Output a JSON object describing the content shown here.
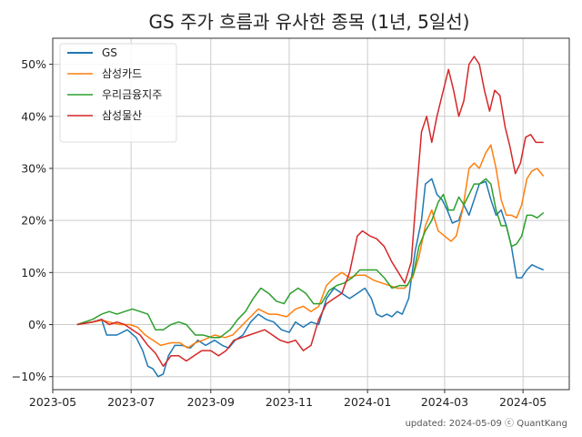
{
  "chart_data": {
    "type": "line",
    "title": "GS 주가 흐름과 유사한 종목 (1년, 5일선)",
    "xlabel": "",
    "ylabel": "",
    "x_range": [
      "2023-05-01",
      "2024-06-06"
    ],
    "ylim": [
      -12.5,
      55
    ],
    "x_ticks": [
      "2023-05",
      "2023-07",
      "2023-09",
      "2023-11",
      "2024-01",
      "2024-03",
      "2024-05"
    ],
    "y_ticks": [
      -10,
      0,
      10,
      20,
      30,
      40,
      50
    ],
    "y_tick_labels": [
      "−10%",
      "0%",
      "10%",
      "20%",
      "30%",
      "40%",
      "50%"
    ],
    "grid": true,
    "legend_position": "top-left",
    "footer": "updated: 2024-05-09 ⓒ QuantKang",
    "series": [
      {
        "name": "GS",
        "color": "#1f77b4",
        "points": [
          [
            "2023-05-20",
            0.0
          ],
          [
            "2023-06-01",
            0.5
          ],
          [
            "2023-06-08",
            1.0
          ],
          [
            "2023-06-12",
            -2.0
          ],
          [
            "2023-06-20",
            -2.0
          ],
          [
            "2023-06-28",
            -1.0
          ],
          [
            "2023-07-05",
            -2.5
          ],
          [
            "2023-07-10",
            -5.0
          ],
          [
            "2023-07-14",
            -8.0
          ],
          [
            "2023-07-18",
            -8.5
          ],
          [
            "2023-07-22",
            -10.0
          ],
          [
            "2023-07-26",
            -9.5
          ],
          [
            "2023-07-30",
            -6.0
          ],
          [
            "2023-08-04",
            -4.0
          ],
          [
            "2023-08-10",
            -4.0
          ],
          [
            "2023-08-16",
            -4.5
          ],
          [
            "2023-08-22",
            -3.0
          ],
          [
            "2023-08-28",
            -4.0
          ],
          [
            "2023-09-04",
            -3.0
          ],
          [
            "2023-09-10",
            -4.0
          ],
          [
            "2023-09-15",
            -4.5
          ],
          [
            "2023-09-20",
            -3.0
          ],
          [
            "2023-09-26",
            -2.0
          ],
          [
            "2023-10-02",
            0.5
          ],
          [
            "2023-10-08",
            2.0
          ],
          [
            "2023-10-14",
            1.0
          ],
          [
            "2023-10-20",
            0.5
          ],
          [
            "2023-10-26",
            -1.0
          ],
          [
            "2023-11-01",
            -1.5
          ],
          [
            "2023-11-06",
            0.5
          ],
          [
            "2023-11-12",
            -0.5
          ],
          [
            "2023-11-18",
            0.5
          ],
          [
            "2023-11-24",
            0.0
          ],
          [
            "2023-11-30",
            5.0
          ],
          [
            "2023-12-06",
            7.0
          ],
          [
            "2023-12-12",
            6.0
          ],
          [
            "2023-12-18",
            5.0
          ],
          [
            "2023-12-24",
            6.0
          ],
          [
            "2023-12-30",
            7.0
          ],
          [
            "2024-01-04",
            5.0
          ],
          [
            "2024-01-08",
            2.0
          ],
          [
            "2024-01-12",
            1.5
          ],
          [
            "2024-01-16",
            2.0
          ],
          [
            "2024-01-20",
            1.5
          ],
          [
            "2024-01-24",
            2.5
          ],
          [
            "2024-01-28",
            2.0
          ],
          [
            "2024-02-02",
            5.0
          ],
          [
            "2024-02-07",
            14.0
          ],
          [
            "2024-02-12",
            20.0
          ],
          [
            "2024-02-15",
            27.0
          ],
          [
            "2024-02-20",
            28.0
          ],
          [
            "2024-02-24",
            25.0
          ],
          [
            "2024-02-28",
            24.0
          ],
          [
            "2024-03-03",
            22.0
          ],
          [
            "2024-03-07",
            19.5
          ],
          [
            "2024-03-12",
            20.0
          ],
          [
            "2024-03-16",
            23.0
          ],
          [
            "2024-03-20",
            21.0
          ],
          [
            "2024-03-24",
            24.0
          ],
          [
            "2024-03-28",
            27.0
          ],
          [
            "2024-04-02",
            27.5
          ],
          [
            "2024-04-06",
            24.0
          ],
          [
            "2024-04-10",
            21.0
          ],
          [
            "2024-04-14",
            22.0
          ],
          [
            "2024-04-18",
            19.0
          ],
          [
            "2024-04-22",
            15.0
          ],
          [
            "2024-04-26",
            9.0
          ],
          [
            "2024-04-30",
            9.0
          ],
          [
            "2024-05-04",
            10.5
          ],
          [
            "2024-05-08",
            11.5
          ],
          [
            "2024-05-12",
            11.0
          ],
          [
            "2024-05-17",
            10.5
          ]
        ]
      },
      {
        "name": "삼성카드",
        "color": "#ff7f0e",
        "points": [
          [
            "2023-05-20",
            0.0
          ],
          [
            "2023-06-01",
            0.5
          ],
          [
            "2023-06-08",
            0.8
          ],
          [
            "2023-06-14",
            0.5
          ],
          [
            "2023-06-22",
            0.0
          ],
          [
            "2023-06-30",
            0.0
          ],
          [
            "2023-07-06",
            -0.5
          ],
          [
            "2023-07-12",
            -2.0
          ],
          [
            "2023-07-18",
            -3.0
          ],
          [
            "2023-07-24",
            -4.0
          ],
          [
            "2023-08-01",
            -3.5
          ],
          [
            "2023-08-08",
            -3.5
          ],
          [
            "2023-08-14",
            -4.5
          ],
          [
            "2023-08-20",
            -3.5
          ],
          [
            "2023-08-26",
            -3.0
          ],
          [
            "2023-09-04",
            -2.0
          ],
          [
            "2023-09-12",
            -2.5
          ],
          [
            "2023-09-18",
            -2.0
          ],
          [
            "2023-09-26",
            0.0
          ],
          [
            "2023-10-02",
            1.5
          ],
          [
            "2023-10-08",
            3.0
          ],
          [
            "2023-10-16",
            2.0
          ],
          [
            "2023-10-22",
            2.0
          ],
          [
            "2023-10-30",
            1.5
          ],
          [
            "2023-11-06",
            3.0
          ],
          [
            "2023-11-12",
            3.5
          ],
          [
            "2023-11-18",
            2.5
          ],
          [
            "2023-11-24",
            3.5
          ],
          [
            "2023-11-30",
            7.5
          ],
          [
            "2023-12-06",
            9.0
          ],
          [
            "2023-12-12",
            10.0
          ],
          [
            "2023-12-18",
            9.0
          ],
          [
            "2023-12-24",
            9.5
          ],
          [
            "2023-12-30",
            9.5
          ],
          [
            "2024-01-06",
            8.5
          ],
          [
            "2024-01-12",
            8.0
          ],
          [
            "2024-01-18",
            7.5
          ],
          [
            "2024-01-24",
            7.0
          ],
          [
            "2024-01-30",
            7.0
          ],
          [
            "2024-02-05",
            9.0
          ],
          [
            "2024-02-10",
            13.0
          ],
          [
            "2024-02-15",
            19.0
          ],
          [
            "2024-02-20",
            22.0
          ],
          [
            "2024-02-25",
            18.0
          ],
          [
            "2024-03-01",
            17.0
          ],
          [
            "2024-03-06",
            16.0
          ],
          [
            "2024-03-10",
            17.0
          ],
          [
            "2024-03-15",
            22.0
          ],
          [
            "2024-03-20",
            30.0
          ],
          [
            "2024-03-24",
            31.0
          ],
          [
            "2024-03-28",
            30.0
          ],
          [
            "2024-04-02",
            33.0
          ],
          [
            "2024-04-06",
            34.5
          ],
          [
            "2024-04-10",
            30.0
          ],
          [
            "2024-04-14",
            24.0
          ],
          [
            "2024-04-18",
            21.0
          ],
          [
            "2024-04-22",
            21.0
          ],
          [
            "2024-04-26",
            20.5
          ],
          [
            "2024-04-30",
            23.0
          ],
          [
            "2024-05-04",
            28.0
          ],
          [
            "2024-05-08",
            29.5
          ],
          [
            "2024-05-12",
            30.0
          ],
          [
            "2024-05-17",
            28.5
          ]
        ]
      },
      {
        "name": "우리금융지주",
        "color": "#2ca02c",
        "points": [
          [
            "2023-05-20",
            0.0
          ],
          [
            "2023-06-01",
            1.0
          ],
          [
            "2023-06-08",
            2.0
          ],
          [
            "2023-06-14",
            2.5
          ],
          [
            "2023-06-20",
            2.0
          ],
          [
            "2023-06-26",
            2.5
          ],
          [
            "2023-07-02",
            3.0
          ],
          [
            "2023-07-08",
            2.5
          ],
          [
            "2023-07-14",
            2.0
          ],
          [
            "2023-07-20",
            -1.0
          ],
          [
            "2023-07-26",
            -1.0
          ],
          [
            "2023-08-01",
            0.0
          ],
          [
            "2023-08-07",
            0.5
          ],
          [
            "2023-08-13",
            0.0
          ],
          [
            "2023-08-20",
            -2.0
          ],
          [
            "2023-08-26",
            -2.0
          ],
          [
            "2023-09-02",
            -2.5
          ],
          [
            "2023-09-08",
            -2.5
          ],
          [
            "2023-09-16",
            -1.0
          ],
          [
            "2023-09-22",
            1.0
          ],
          [
            "2023-09-28",
            2.5
          ],
          [
            "2023-10-04",
            5.0
          ],
          [
            "2023-10-10",
            7.0
          ],
          [
            "2023-10-16",
            6.0
          ],
          [
            "2023-10-22",
            4.5
          ],
          [
            "2023-10-28",
            4.0
          ],
          [
            "2023-11-02",
            6.0
          ],
          [
            "2023-11-08",
            7.0
          ],
          [
            "2023-11-14",
            6.0
          ],
          [
            "2023-11-20",
            4.0
          ],
          [
            "2023-11-26",
            4.0
          ],
          [
            "2023-12-02",
            6.5
          ],
          [
            "2023-12-08",
            7.5
          ],
          [
            "2023-12-14",
            8.0
          ],
          [
            "2023-12-20",
            9.0
          ],
          [
            "2023-12-26",
            10.5
          ],
          [
            "2024-01-02",
            10.5
          ],
          [
            "2024-01-08",
            10.5
          ],
          [
            "2024-01-14",
            9.0
          ],
          [
            "2024-01-20",
            7.0
          ],
          [
            "2024-01-26",
            7.5
          ],
          [
            "2024-02-01",
            7.5
          ],
          [
            "2024-02-06",
            10.0
          ],
          [
            "2024-02-10",
            15.0
          ],
          [
            "2024-02-15",
            18.0
          ],
          [
            "2024-02-20",
            20.0
          ],
          [
            "2024-02-25",
            23.5
          ],
          [
            "2024-02-29",
            25.0
          ],
          [
            "2024-03-04",
            22.0
          ],
          [
            "2024-03-08",
            22.0
          ],
          [
            "2024-03-12",
            24.5
          ],
          [
            "2024-03-16",
            23.0
          ],
          [
            "2024-03-20",
            25.0
          ],
          [
            "2024-03-24",
            27.0
          ],
          [
            "2024-03-28",
            27.0
          ],
          [
            "2024-04-02",
            28.0
          ],
          [
            "2024-04-06",
            27.0
          ],
          [
            "2024-04-10",
            22.0
          ],
          [
            "2024-04-14",
            19.0
          ],
          [
            "2024-04-18",
            19.0
          ],
          [
            "2024-04-22",
            15.0
          ],
          [
            "2024-04-26",
            15.5
          ],
          [
            "2024-04-30",
            17.0
          ],
          [
            "2024-05-04",
            21.0
          ],
          [
            "2024-05-08",
            21.0
          ],
          [
            "2024-05-12",
            20.5
          ],
          [
            "2024-05-17",
            21.5
          ]
        ]
      },
      {
        "name": "삼성물산",
        "color": "#d62728",
        "points": [
          [
            "2023-05-20",
            0.0
          ],
          [
            "2023-06-01",
            0.5
          ],
          [
            "2023-06-08",
            1.0
          ],
          [
            "2023-06-14",
            0.0
          ],
          [
            "2023-06-20",
            0.5
          ],
          [
            "2023-06-26",
            0.0
          ],
          [
            "2023-07-02",
            -1.0
          ],
          [
            "2023-07-08",
            -2.0
          ],
          [
            "2023-07-14",
            -4.0
          ],
          [
            "2023-07-20",
            -5.5
          ],
          [
            "2023-07-26",
            -8.0
          ],
          [
            "2023-08-01",
            -6.0
          ],
          [
            "2023-08-07",
            -6.0
          ],
          [
            "2023-08-13",
            -7.0
          ],
          [
            "2023-08-19",
            -6.0
          ],
          [
            "2023-08-25",
            -5.0
          ],
          [
            "2023-09-01",
            -5.0
          ],
          [
            "2023-09-07",
            -6.0
          ],
          [
            "2023-09-13",
            -5.0
          ],
          [
            "2023-09-19",
            -3.0
          ],
          [
            "2023-09-25",
            -2.5
          ],
          [
            "2023-10-01",
            -2.0
          ],
          [
            "2023-10-07",
            -1.5
          ],
          [
            "2023-10-13",
            -1.0
          ],
          [
            "2023-10-19",
            -2.0
          ],
          [
            "2023-10-25",
            -3.0
          ],
          [
            "2023-10-31",
            -3.5
          ],
          [
            "2023-11-06",
            -3.0
          ],
          [
            "2023-11-12",
            -5.0
          ],
          [
            "2023-11-18",
            -4.0
          ],
          [
            "2023-11-24",
            1.0
          ],
          [
            "2023-11-30",
            4.0
          ],
          [
            "2023-12-06",
            5.0
          ],
          [
            "2023-12-12",
            6.0
          ],
          [
            "2023-12-18",
            10.0
          ],
          [
            "2023-12-24",
            17.0
          ],
          [
            "2023-12-28",
            18.0
          ],
          [
            "2024-01-03",
            17.0
          ],
          [
            "2024-01-08",
            16.5
          ],
          [
            "2024-01-14",
            15.0
          ],
          [
            "2024-01-20",
            12.0
          ],
          [
            "2024-01-25",
            10.0
          ],
          [
            "2024-01-30",
            8.0
          ],
          [
            "2024-02-04",
            12.0
          ],
          [
            "2024-02-08",
            25.0
          ],
          [
            "2024-02-12",
            37.0
          ],
          [
            "2024-02-16",
            40.0
          ],
          [
            "2024-02-20",
            35.0
          ],
          [
            "2024-02-24",
            40.0
          ],
          [
            "2024-02-28",
            44.0
          ],
          [
            "2024-03-04",
            49.0
          ],
          [
            "2024-03-08",
            45.0
          ],
          [
            "2024-03-12",
            40.0
          ],
          [
            "2024-03-16",
            43.0
          ],
          [
            "2024-03-20",
            50.0
          ],
          [
            "2024-03-24",
            51.5
          ],
          [
            "2024-03-28",
            50.0
          ],
          [
            "2024-04-01",
            45.0
          ],
          [
            "2024-04-05",
            41.0
          ],
          [
            "2024-04-09",
            45.0
          ],
          [
            "2024-04-13",
            44.0
          ],
          [
            "2024-04-17",
            38.0
          ],
          [
            "2024-04-21",
            34.0
          ],
          [
            "2024-04-25",
            29.0
          ],
          [
            "2024-04-29",
            31.0
          ],
          [
            "2024-05-03",
            36.0
          ],
          [
            "2024-05-07",
            36.5
          ],
          [
            "2024-05-11",
            35.0
          ],
          [
            "2024-05-17",
            35.0
          ]
        ]
      }
    ]
  }
}
